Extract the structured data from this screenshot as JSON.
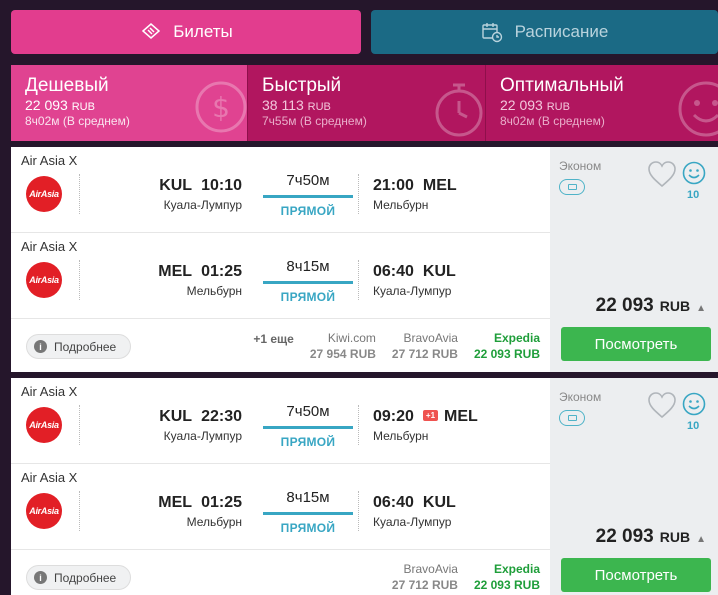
{
  "tabs": {
    "tickets": "Билеты",
    "schedule": "Расписание"
  },
  "sort": [
    {
      "name": "Дешевый",
      "price": "22 093",
      "currency": "RUB",
      "avg": "8ч02м (В среднем)"
    },
    {
      "name": "Быстрый",
      "price": "38 113",
      "currency": "RUB",
      "avg": "7ч55м (В среднем)"
    },
    {
      "name": "Оптимальный",
      "price": "22 093",
      "currency": "RUB",
      "avg": "8ч02м (В среднем)"
    }
  ],
  "cards": [
    {
      "segments": [
        {
          "airline": "Air Asia X",
          "logo": "AirAsia",
          "from_code": "KUL",
          "dep_time": "10:10",
          "from_city": "Куала-Лумпур",
          "duration": "7ч50м",
          "direct": "ПРЯМОЙ",
          "arr_time": "21:00",
          "to_code": "MEL",
          "to_city": "Мельбурн"
        },
        {
          "airline": "Air Asia X",
          "logo": "AirAsia",
          "from_code": "MEL",
          "dep_time": "01:25",
          "from_city": "Мельбурн",
          "duration": "8ч15м",
          "direct": "ПРЯМОЙ",
          "arr_time": "06:40",
          "to_code": "KUL",
          "to_city": "Куала-Лумпур"
        }
      ],
      "details": "Подробнее",
      "more_count": "+1 еще",
      "agents": [
        {
          "name": "Kiwi.com",
          "price": "27 954 RUB"
        },
        {
          "name": "BravoAvia",
          "price": "27 712 RUB"
        },
        {
          "name": "Expedia",
          "price": "22 093 RUB"
        }
      ],
      "class": "Эконом",
      "score": "10",
      "price": "22 093",
      "currency": "RUB",
      "view": "Посмотреть"
    },
    {
      "segments": [
        {
          "airline": "Air Asia X",
          "logo": "AirAsia",
          "from_code": "KUL",
          "dep_time": "22:30",
          "from_city": "Куала-Лумпур",
          "duration": "7ч50м",
          "direct": "ПРЯМОЙ",
          "arr_time": "09:20",
          "day_plus": "+1",
          "to_code": "MEL",
          "to_city": "Мельбурн"
        },
        {
          "airline": "Air Asia X",
          "logo": "AirAsia",
          "from_code": "MEL",
          "dep_time": "01:25",
          "from_city": "Мельбурн",
          "duration": "8ч15м",
          "direct": "ПРЯМОЙ",
          "arr_time": "06:40",
          "to_code": "KUL",
          "to_city": "Куала-Лумпур"
        }
      ],
      "details": "Подробнее",
      "agents": [
        {
          "name": "BravoAvia",
          "price": "27 712 RUB"
        },
        {
          "name": "Expedia",
          "price": "22 093 RUB"
        }
      ],
      "class": "Эконом",
      "score": "10",
      "price": "22 093",
      "currency": "RUB",
      "view": "Посмотреть"
    }
  ],
  "colors": {
    "accent": "#e23d8e",
    "teal": "#1b6a85",
    "green": "#3cb64f",
    "line": "#38a6c3"
  }
}
